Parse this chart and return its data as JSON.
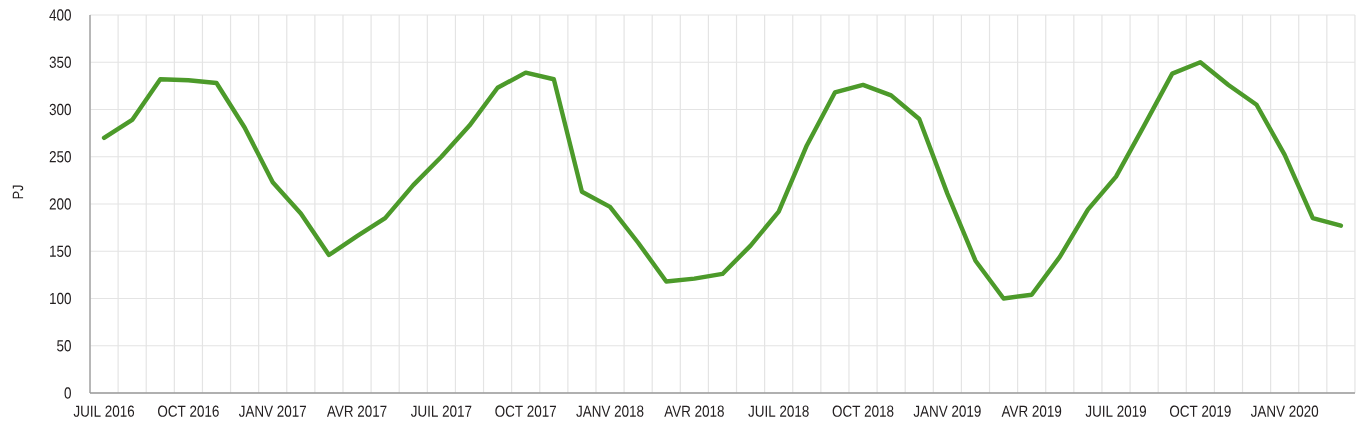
{
  "chart_data": {
    "type": "line",
    "ylabel": "PJ",
    "categories": [
      "JUIL 2016",
      null,
      null,
      "OCT 2016",
      null,
      null,
      "JANV 2017",
      null,
      null,
      "AVR 2017",
      null,
      null,
      "JUIL 2017",
      null,
      null,
      "OCT 2017",
      null,
      null,
      "JANV 2018",
      null,
      null,
      "AVR 2018",
      null,
      null,
      "JUIL 2018",
      null,
      null,
      "OCT 2018",
      null,
      null,
      "JANV 2019",
      null,
      null,
      "AVR 2019",
      null,
      null,
      "JUIL 2019",
      null,
      null,
      "OCT 2019",
      null,
      null,
      "JANV 2020",
      null,
      null
    ],
    "series": [
      {
        "color": "#4c9a2a",
        "values": [
          270,
          289,
          332,
          331,
          328,
          281,
          223,
          190,
          146,
          166,
          185,
          220,
          250,
          283,
          323,
          339,
          332,
          213,
          197,
          159,
          118,
          121,
          126,
          156,
          192,
          262,
          318,
          326,
          315,
          290,
          211,
          140,
          100,
          104,
          144,
          194,
          229,
          283,
          338,
          350,
          326,
          305,
          252,
          185,
          177
        ]
      }
    ],
    "ylim": [
      0,
      400
    ],
    "yticks": [
      0,
      50,
      100,
      150,
      200,
      250,
      300,
      350,
      400
    ],
    "grid": true,
    "marker": "none",
    "line_style": "solid"
  }
}
